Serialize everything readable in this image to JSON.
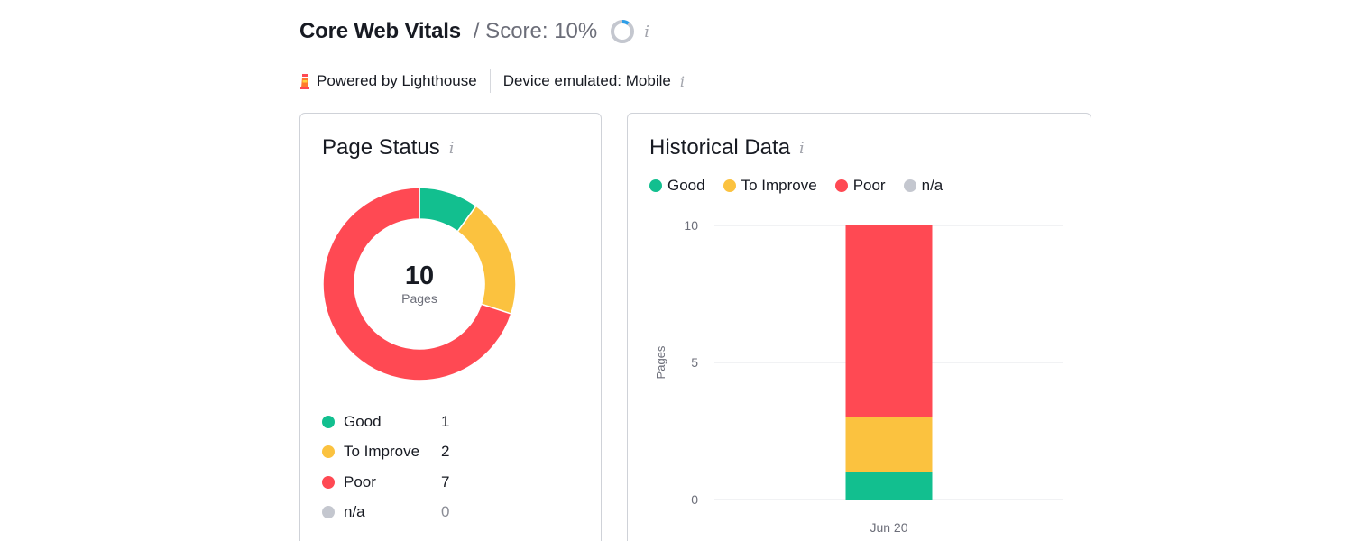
{
  "header": {
    "title": "Core Web Vitals",
    "score_text": "/ Score: 10%",
    "score_value": 10,
    "info_glyph": "i"
  },
  "subheader": {
    "powered_by": "Powered by Lighthouse",
    "device": "Device emulated: Mobile",
    "info_glyph": "i"
  },
  "colors": {
    "good": "#12bf8f",
    "to_improve": "#fbc23f",
    "poor": "#ff4953",
    "na": "#c4c7cf",
    "score_ring_track": "#c4c7cf",
    "score_ring_fill": "#2d9ee8"
  },
  "page_status": {
    "title": "Page Status",
    "info_glyph": "i",
    "total": "10",
    "total_caption": "Pages",
    "items": [
      {
        "label": "Good",
        "count": "1",
        "value": 1,
        "color_key": "good"
      },
      {
        "label": "To Improve",
        "count": "2",
        "value": 2,
        "color_key": "to_improve"
      },
      {
        "label": "Poor",
        "count": "7",
        "value": 7,
        "color_key": "poor"
      },
      {
        "label": "n/a",
        "count": "0",
        "value": 0,
        "color_key": "na"
      }
    ]
  },
  "historical": {
    "title": "Historical Data",
    "info_glyph": "i",
    "legend": [
      "Good",
      "To Improve",
      "Poor",
      "n/a"
    ]
  },
  "chart_data": [
    {
      "type": "pie",
      "categories": [
        "Good",
        "To Improve",
        "Poor",
        "n/a"
      ],
      "values": [
        1,
        2,
        7,
        0
      ],
      "center_value": "10",
      "center_label": "Pages"
    },
    {
      "type": "bar",
      "stacked": true,
      "categories": [
        "Jun 20"
      ],
      "series": [
        {
          "name": "Good",
          "values": [
            1
          ]
        },
        {
          "name": "To Improve",
          "values": [
            2
          ]
        },
        {
          "name": "Poor",
          "values": [
            7
          ]
        },
        {
          "name": "n/a",
          "values": [
            0
          ]
        }
      ],
      "ylabel": "Pages",
      "yticks": [
        "0",
        "5",
        "10"
      ],
      "ylim": [
        0,
        10
      ],
      "grid": true,
      "legend": "top-left"
    }
  ]
}
